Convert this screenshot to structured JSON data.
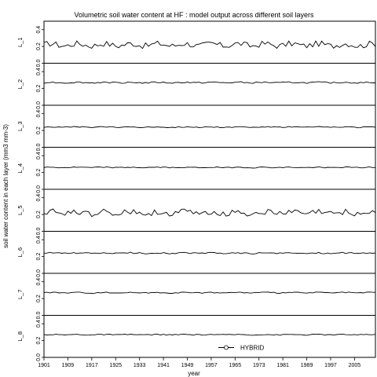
{
  "chart_data": {
    "type": "line",
    "title": "Volumetric soil water content at HF : model output across different soil layers",
    "xlabel": "year",
    "ylabel": "soil water content in each layer (mm3 mm-3)",
    "xlim": [
      1901,
      2012
    ],
    "x_tick_labels": [
      "1901",
      "1909",
      "1917",
      "1925",
      "1933",
      "1941",
      "1949",
      "1957",
      "1965",
      "1973",
      "1981",
      "1989",
      "1997",
      "2005"
    ],
    "y_tick_labels": [
      "0.0",
      "0.2",
      "0.4"
    ],
    "ylim": [
      0,
      0.5
    ],
    "grid": false,
    "legend": {
      "placement": "bottom-right",
      "entries": [
        "HYBRID"
      ]
    },
    "series_style": {
      "color": "#000000"
    },
    "panels": [
      {
        "label": "L_1",
        "mean": 0.22,
        "amp": 0.035
      },
      {
        "label": "L_2",
        "mean": 0.27,
        "amp": 0.008
      },
      {
        "label": "L_3",
        "mean": 0.24,
        "amp": 0.006
      },
      {
        "label": "L_4",
        "mean": 0.26,
        "amp": 0.006
      },
      {
        "label": "L_5",
        "mean": 0.22,
        "amp": 0.035
      },
      {
        "label": "L_6",
        "mean": 0.24,
        "amp": 0.008
      },
      {
        "label": "L_7",
        "mean": 0.27,
        "amp": 0.006
      },
      {
        "label": "L_8",
        "mean": 0.27,
        "amp": 0.006
      }
    ]
  }
}
